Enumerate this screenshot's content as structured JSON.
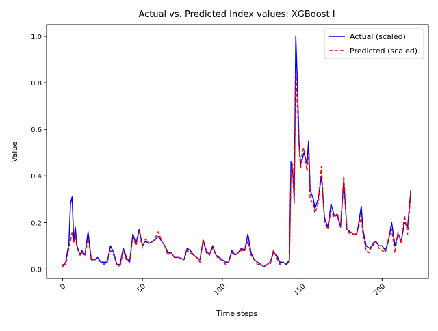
{
  "chart_data": {
    "type": "line",
    "title": "Actual vs. Predicted Index values: XGBoost I",
    "xlabel": "Time steps",
    "ylabel": "Value",
    "xlim": [
      -10,
      229
    ],
    "ylim": [
      -0.04,
      1.05
    ],
    "x_ticks": [
      0,
      50,
      100,
      150,
      200
    ],
    "y_ticks": [
      0.0,
      0.2,
      0.4,
      0.6,
      0.8,
      1.0
    ],
    "x_tick_labels": [
      "0",
      "50",
      "100",
      "150",
      "200"
    ],
    "y_tick_labels": [
      "0.0",
      "0.2",
      "0.4",
      "0.6",
      "0.8",
      "1.0"
    ],
    "legend_position": "top-right",
    "grid": false,
    "series": [
      {
        "name": "Actual (scaled)",
        "color": "#0000ff",
        "style": "solid",
        "points": [
          [
            0,
            0.01
          ],
          [
            2,
            0.03
          ],
          [
            4,
            0.11
          ],
          [
            5,
            0.28
          ],
          [
            6,
            0.31
          ],
          [
            7,
            0.12
          ],
          [
            8,
            0.18
          ],
          [
            9,
            0.1
          ],
          [
            11,
            0.06
          ],
          [
            12,
            0.08
          ],
          [
            14,
            0.06
          ],
          [
            16,
            0.16
          ],
          [
            17,
            0.1
          ],
          [
            18,
            0.04
          ],
          [
            20,
            0.04
          ],
          [
            22,
            0.05
          ],
          [
            24,
            0.03
          ],
          [
            26,
            0.03
          ],
          [
            28,
            0.03
          ],
          [
            30,
            0.1
          ],
          [
            32,
            0.07
          ],
          [
            34,
            0.02
          ],
          [
            36,
            0.02
          ],
          [
            38,
            0.09
          ],
          [
            40,
            0.05
          ],
          [
            42,
            0.03
          ],
          [
            44,
            0.15
          ],
          [
            46,
            0.11
          ],
          [
            48,
            0.17
          ],
          [
            50,
            0.1
          ],
          [
            52,
            0.12
          ],
          [
            54,
            0.11
          ],
          [
            57,
            0.12
          ],
          [
            60,
            0.14
          ],
          [
            62,
            0.12
          ],
          [
            64,
            0.1
          ],
          [
            66,
            0.07
          ],
          [
            68,
            0.07
          ],
          [
            70,
            0.05
          ],
          [
            73,
            0.05
          ],
          [
            76,
            0.04
          ],
          [
            78,
            0.09
          ],
          [
            80,
            0.08
          ],
          [
            82,
            0.06
          ],
          [
            84,
            0.05
          ],
          [
            86,
            0.04
          ],
          [
            88,
            0.12
          ],
          [
            90,
            0.08
          ],
          [
            92,
            0.06
          ],
          [
            94,
            0.1
          ],
          [
            96,
            0.06
          ],
          [
            98,
            0.05
          ],
          [
            100,
            0.04
          ],
          [
            102,
            0.03
          ],
          [
            104,
            0.03
          ],
          [
            106,
            0.08
          ],
          [
            108,
            0.06
          ],
          [
            110,
            0.07
          ],
          [
            112,
            0.09
          ],
          [
            114,
            0.08
          ],
          [
            116,
            0.15
          ],
          [
            118,
            0.07
          ],
          [
            120,
            0.04
          ],
          [
            122,
            0.03
          ],
          [
            124,
            0.02
          ],
          [
            126,
            0.01
          ],
          [
            128,
            0.02
          ],
          [
            130,
            0.03
          ],
          [
            132,
            0.07
          ],
          [
            134,
            0.06
          ],
          [
            136,
            0.03
          ],
          [
            138,
            0.03
          ],
          [
            140,
            0.02
          ],
          [
            142,
            0.04
          ],
          [
            143,
            0.46
          ],
          [
            144,
            0.43
          ],
          [
            145,
            0.3
          ],
          [
            146,
            1.0
          ],
          [
            147,
            0.8
          ],
          [
            148,
            0.55
          ],
          [
            149,
            0.45
          ],
          [
            150,
            0.47
          ],
          [
            151,
            0.5
          ],
          [
            152,
            0.48
          ],
          [
            153,
            0.45
          ],
          [
            154,
            0.55
          ],
          [
            155,
            0.34
          ],
          [
            157,
            0.3
          ],
          [
            158,
            0.26
          ],
          [
            160,
            0.3
          ],
          [
            162,
            0.4
          ],
          [
            164,
            0.22
          ],
          [
            166,
            0.18
          ],
          [
            167,
            0.22
          ],
          [
            168,
            0.28
          ],
          [
            170,
            0.23
          ],
          [
            172,
            0.23
          ],
          [
            174,
            0.18
          ],
          [
            176,
            0.38
          ],
          [
            178,
            0.17
          ],
          [
            180,
            0.16
          ],
          [
            182,
            0.15
          ],
          [
            184,
            0.15
          ],
          [
            185,
            0.18
          ],
          [
            187,
            0.27
          ],
          [
            188,
            0.17
          ],
          [
            190,
            0.1
          ],
          [
            192,
            0.09
          ],
          [
            194,
            0.1
          ],
          [
            196,
            0.12
          ],
          [
            198,
            0.1
          ],
          [
            200,
            0.1
          ],
          [
            202,
            0.08
          ],
          [
            204,
            0.12
          ],
          [
            206,
            0.2
          ],
          [
            208,
            0.1
          ],
          [
            210,
            0.15
          ],
          [
            212,
            0.12
          ],
          [
            214,
            0.2
          ],
          [
            216,
            0.18
          ],
          [
            218,
            0.34
          ]
        ]
      },
      {
        "name": "Predicted (scaled)",
        "color": "#ff0000",
        "style": "dashed",
        "points": [
          [
            0,
            0.02
          ],
          [
            2,
            0.02
          ],
          [
            4,
            0.09
          ],
          [
            5,
            0.12
          ],
          [
            6,
            0.16
          ],
          [
            7,
            0.11
          ],
          [
            8,
            0.15
          ],
          [
            9,
            0.09
          ],
          [
            11,
            0.06
          ],
          [
            12,
            0.07
          ],
          [
            14,
            0.06
          ],
          [
            16,
            0.13
          ],
          [
            17,
            0.09
          ],
          [
            18,
            0.04
          ],
          [
            20,
            0.04
          ],
          [
            22,
            0.04
          ],
          [
            24,
            0.03
          ],
          [
            26,
            0.02
          ],
          [
            28,
            0.03
          ],
          [
            30,
            0.08
          ],
          [
            32,
            0.06
          ],
          [
            34,
            0.02
          ],
          [
            36,
            0.01
          ],
          [
            38,
            0.08
          ],
          [
            40,
            0.04
          ],
          [
            42,
            0.03
          ],
          [
            44,
            0.14
          ],
          [
            46,
            0.1
          ],
          [
            48,
            0.16
          ],
          [
            50,
            0.09
          ],
          [
            52,
            0.13
          ],
          [
            54,
            0.11
          ],
          [
            57,
            0.12
          ],
          [
            60,
            0.16
          ],
          [
            62,
            0.12
          ],
          [
            64,
            0.1
          ],
          [
            66,
            0.06
          ],
          [
            68,
            0.07
          ],
          [
            70,
            0.05
          ],
          [
            73,
            0.05
          ],
          [
            76,
            0.04
          ],
          [
            78,
            0.08
          ],
          [
            80,
            0.07
          ],
          [
            82,
            0.06
          ],
          [
            84,
            0.05
          ],
          [
            86,
            0.03
          ],
          [
            88,
            0.13
          ],
          [
            90,
            0.07
          ],
          [
            92,
            0.06
          ],
          [
            94,
            0.09
          ],
          [
            96,
            0.06
          ],
          [
            98,
            0.04
          ],
          [
            100,
            0.04
          ],
          [
            102,
            0.02
          ],
          [
            104,
            0.03
          ],
          [
            106,
            0.07
          ],
          [
            108,
            0.06
          ],
          [
            110,
            0.07
          ],
          [
            112,
            0.08
          ],
          [
            114,
            0.08
          ],
          [
            116,
            0.12
          ],
          [
            118,
            0.06
          ],
          [
            120,
            0.04
          ],
          [
            122,
            0.02
          ],
          [
            124,
            0.02
          ],
          [
            126,
            0.01
          ],
          [
            128,
            0.02
          ],
          [
            130,
            0.02
          ],
          [
            132,
            0.08
          ],
          [
            134,
            0.05
          ],
          [
            136,
            0.02
          ],
          [
            138,
            0.03
          ],
          [
            140,
            0.02
          ],
          [
            142,
            0.03
          ],
          [
            143,
            0.4
          ],
          [
            144,
            0.45
          ],
          [
            145,
            0.28
          ],
          [
            146,
            0.85
          ],
          [
            147,
            0.7
          ],
          [
            148,
            0.53
          ],
          [
            149,
            0.43
          ],
          [
            150,
            0.5
          ],
          [
            151,
            0.52
          ],
          [
            152,
            0.47
          ],
          [
            153,
            0.42
          ],
          [
            154,
            0.5
          ],
          [
            155,
            0.3
          ],
          [
            157,
            0.28
          ],
          [
            158,
            0.24
          ],
          [
            160,
            0.28
          ],
          [
            162,
            0.44
          ],
          [
            164,
            0.2
          ],
          [
            166,
            0.17
          ],
          [
            167,
            0.21
          ],
          [
            168,
            0.25
          ],
          [
            170,
            0.22
          ],
          [
            172,
            0.24
          ],
          [
            174,
            0.18
          ],
          [
            176,
            0.4
          ],
          [
            178,
            0.17
          ],
          [
            180,
            0.15
          ],
          [
            182,
            0.15
          ],
          [
            184,
            0.15
          ],
          [
            185,
            0.17
          ],
          [
            187,
            0.23
          ],
          [
            188,
            0.15
          ],
          [
            190,
            0.08
          ],
          [
            192,
            0.07
          ],
          [
            194,
            0.11
          ],
          [
            196,
            0.12
          ],
          [
            198,
            0.09
          ],
          [
            200,
            0.08
          ],
          [
            202,
            0.07
          ],
          [
            204,
            0.13
          ],
          [
            206,
            0.17
          ],
          [
            208,
            0.07
          ],
          [
            210,
            0.16
          ],
          [
            212,
            0.11
          ],
          [
            214,
            0.23
          ],
          [
            216,
            0.15
          ],
          [
            218,
            0.33
          ]
        ]
      }
    ]
  }
}
